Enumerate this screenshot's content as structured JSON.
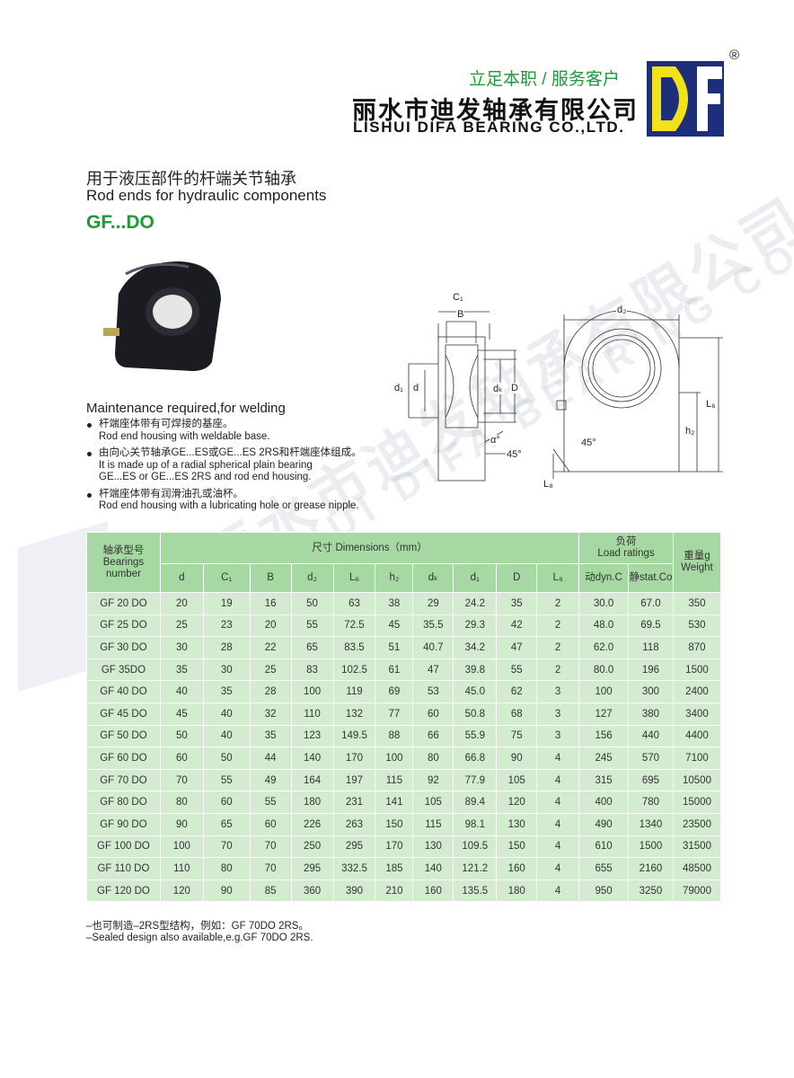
{
  "header": {
    "slogan": "立足本职 / 服务客户",
    "company_cn": "丽水市迪发轴承有限公司",
    "company_en": "LISHUI DIFA BEARING CO.,LTD.",
    "registered": "®"
  },
  "title_cn": "用于液压部件的杆端关节轴承",
  "title_en": "Rod ends for hydraulic components",
  "model": "GF...DO",
  "features": {
    "heading": "Maintenance required,for welding",
    "items": [
      {
        "cn": "杆端座体带有可焊接的基座。",
        "en": [
          "Rod end housing with weldable base."
        ]
      },
      {
        "cn": "由向心关节轴承GE...ES或GE...ES 2RS和杆端座体组成。",
        "en": [
          "It is made up of a radial spherical plain bearing",
          "GE...ES or GE...ES 2RS and rod end housing."
        ]
      },
      {
        "cn": "杆端座体带有润滑油孔或油杯。",
        "en": [
          "Rod end housing with a lubricating hole or grease nipple."
        ]
      }
    ]
  },
  "diagram": {
    "side": {
      "C1": "C₁",
      "B": "B",
      "d1": "d₁",
      "d": "d",
      "dk": "dₖ",
      "D": "D",
      "alpha": "α°",
      "angle": "45°"
    },
    "front": {
      "d2": "d₂",
      "L6": "L₆",
      "h2": "h₂",
      "angle": "45°",
      "L8": "L₈"
    }
  },
  "table": {
    "header": {
      "bearing": {
        "cn": "轴承型号",
        "en": [
          "Bearings",
          "number"
        ]
      },
      "dimensions": "尺寸 Dimensions（mm）",
      "load": {
        "cn": "负荷",
        "en": "Load ratings"
      },
      "weight": {
        "cn": "重量g",
        "en": "Weight"
      },
      "columns": [
        "d",
        "C₁",
        "B",
        "d₂",
        "L₆",
        "h₂",
        "dₖ",
        "d₁",
        "D",
        "L₈",
        "动dyn.C",
        "静stat.Co"
      ]
    },
    "rows": [
      [
        "GF 20 DO",
        "20",
        "19",
        "16",
        "50",
        "63",
        "38",
        "29",
        "24.2",
        "35",
        "2",
        "30.0",
        "67.0",
        "350"
      ],
      [
        "GF 25 DO",
        "25",
        "23",
        "20",
        "55",
        "72.5",
        "45",
        "35.5",
        "29.3",
        "42",
        "2",
        "48.0",
        "69.5",
        "530"
      ],
      [
        "GF 30 DO",
        "30",
        "28",
        "22",
        "65",
        "83.5",
        "51",
        "40.7",
        "34.2",
        "47",
        "2",
        "62.0",
        "118",
        "870"
      ],
      [
        "GF 35DO",
        "35",
        "30",
        "25",
        "83",
        "102.5",
        "61",
        "47",
        "39.8",
        "55",
        "2",
        "80.0",
        "196",
        "1500"
      ],
      [
        "GF 40 DO",
        "40",
        "35",
        "28",
        "100",
        "119",
        "69",
        "53",
        "45.0",
        "62",
        "3",
        "100",
        "300",
        "2400"
      ],
      [
        "GF 45 DO",
        "45",
        "40",
        "32",
        "110",
        "132",
        "77",
        "60",
        "50.8",
        "68",
        "3",
        "127",
        "380",
        "3400"
      ],
      [
        "GF 50 DO",
        "50",
        "40",
        "35",
        "123",
        "149.5",
        "88",
        "66",
        "55.9",
        "75",
        "3",
        "156",
        "440",
        "4400"
      ],
      [
        "GF 60 DO",
        "60",
        "50",
        "44",
        "140",
        "170",
        "100",
        "80",
        "66.8",
        "90",
        "4",
        "245",
        "570",
        "7100"
      ],
      [
        "GF 70 DO",
        "70",
        "55",
        "49",
        "164",
        "197",
        "115",
        "92",
        "77.9",
        "105",
        "4",
        "315",
        "695",
        "10500"
      ],
      [
        "GF 80 DO",
        "80",
        "60",
        "55",
        "180",
        "231",
        "141",
        "105",
        "89.4",
        "120",
        "4",
        "400",
        "780",
        "15000"
      ],
      [
        "GF 90 DO",
        "90",
        "65",
        "60",
        "226",
        "263",
        "150",
        "115",
        "98.1",
        "130",
        "4",
        "490",
        "1340",
        "23500"
      ],
      [
        "GF 100 DO",
        "100",
        "70",
        "70",
        "250",
        "295",
        "170",
        "130",
        "109.5",
        "150",
        "4",
        "610",
        "1500",
        "31500"
      ],
      [
        "GF 110 DO",
        "110",
        "80",
        "70",
        "295",
        "332.5",
        "185",
        "140",
        "121.2",
        "160",
        "4",
        "655",
        "2160",
        "48500"
      ],
      [
        "GF 120 DO",
        "120",
        "90",
        "85",
        "360",
        "390",
        "210",
        "160",
        "135.5",
        "180",
        "4",
        "950",
        "3250",
        "79000"
      ]
    ]
  },
  "notes": [
    "–也可制造–2RS型结构，例如：GF 70DO 2RS。",
    "–Sealed design also available,e.g.GF 70DO 2RS."
  ]
}
